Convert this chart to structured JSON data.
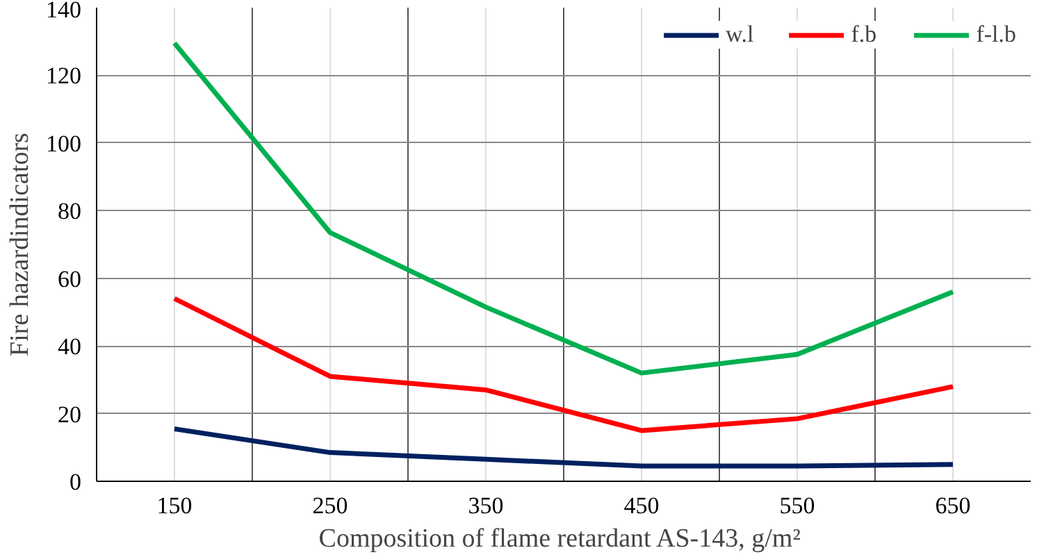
{
  "chart_data": {
    "type": "line",
    "xlabel": "Composition of flame  retardant AS-143, g/m²",
    "ylabel": "Fire hazardindicators",
    "categories": [
      "150",
      "250",
      "350",
      "450",
      "550",
      "650"
    ],
    "series": [
      {
        "name": "w.l",
        "color": "#002060",
        "values": [
          15.5,
          8.5,
          6.5,
          4.5,
          4.5,
          5
        ]
      },
      {
        "name": "f.b",
        "color": "#ff0000",
        "values": [
          54,
          31,
          27,
          15,
          18.5,
          28
        ]
      },
      {
        "name": "f-l.b",
        "color": "#00b050",
        "values": [
          129.5,
          73.5,
          51.5,
          32,
          37.5,
          56
        ]
      }
    ],
    "ylim": [
      0,
      140
    ],
    "yticks": [
      0,
      20,
      40,
      60,
      80,
      100,
      120,
      140
    ],
    "grid": true,
    "legend": "top right",
    "marker": "none",
    "line_style": "solid"
  }
}
